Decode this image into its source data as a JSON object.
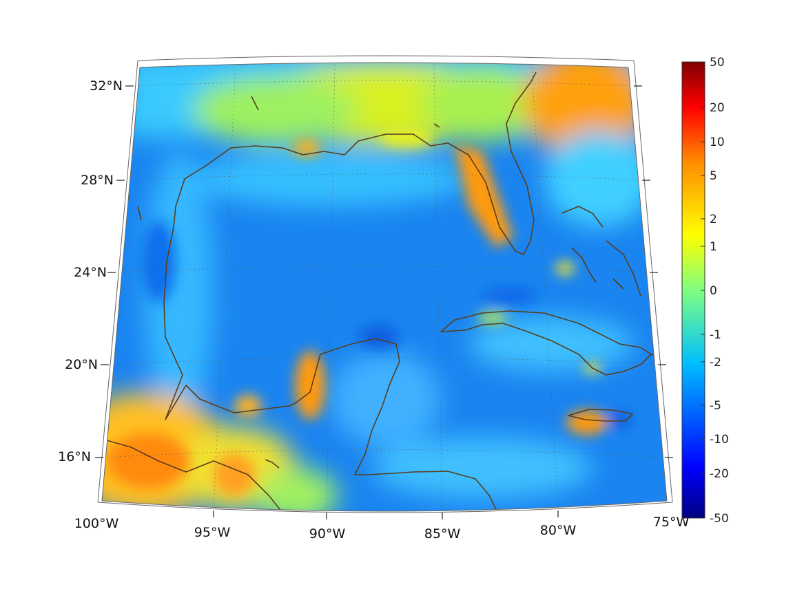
{
  "map": {
    "projection": "conic",
    "lon_range": [
      -100,
      -75
    ],
    "lat_range": [
      14,
      33
    ],
    "lat_ticks": [
      {
        "value": 32,
        "label": "32°N"
      },
      {
        "value": 28,
        "label": "28°N"
      },
      {
        "value": 24,
        "label": "24°N"
      },
      {
        "value": 20,
        "label": "20°N"
      },
      {
        "value": 16,
        "label": "16°N"
      }
    ],
    "lon_ticks": [
      {
        "value": -100,
        "label": "100°W"
      },
      {
        "value": -95,
        "label": "95°W"
      },
      {
        "value": -90,
        "label": "90°W"
      },
      {
        "value": -85,
        "label": "85°W"
      },
      {
        "value": -80,
        "label": "80°W"
      },
      {
        "value": -75,
        "label": "75°W"
      }
    ],
    "ocean_color": "#1a84f0",
    "coastline_color": "#5a3d1a",
    "grid": true
  },
  "colorbar": {
    "colormap": "jet",
    "ticks": [
      "50",
      "20",
      "10",
      "5",
      "2",
      "1",
      "0",
      "-1",
      "-2",
      "-5",
      "-10",
      "-20",
      "-50"
    ],
    "placement": "right"
  }
}
